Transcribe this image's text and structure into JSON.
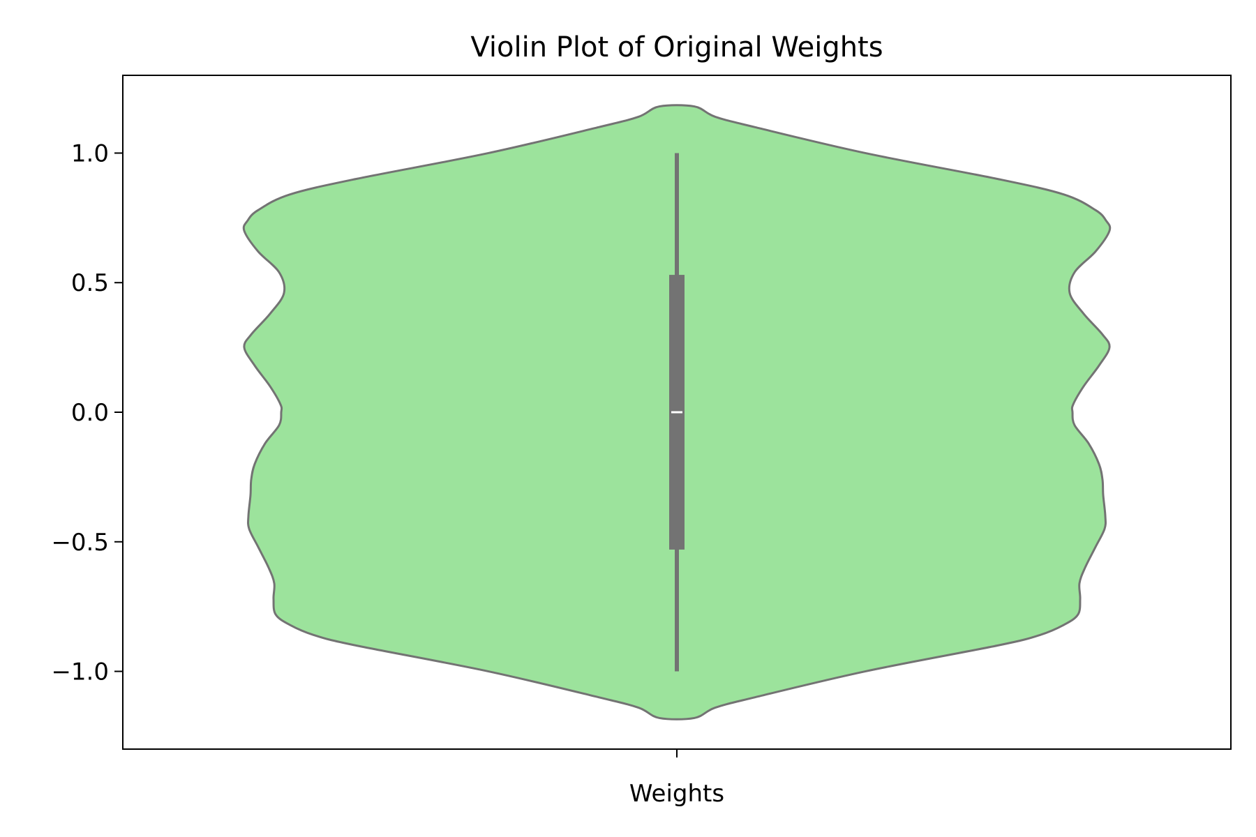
{
  "chart_data": {
    "type": "violin",
    "title": "Violin Plot of Original Weights",
    "xlabel": "",
    "ylabel": "",
    "categories": [
      "Weights"
    ],
    "ylim": [
      -1.3,
      1.3
    ],
    "yticks": [
      1.0,
      0.5,
      0.0,
      -0.5,
      -1.0
    ],
    "ytick_labels": [
      "1.0",
      "0.5",
      "0.0",
      "−0.5",
      "−1.0"
    ],
    "grid": false,
    "legend": "none",
    "colors": {
      "fill": "#9ce39c",
      "edge": "#737373",
      "box": "#737373",
      "median": "#ffffff"
    },
    "density_profile": {
      "y": [
        1.18,
        1.14,
        1.1,
        1.0,
        0.9,
        0.84,
        0.78,
        0.74,
        0.7,
        0.62,
        0.54,
        0.46,
        0.38,
        0.3,
        0.25,
        0.18,
        0.1,
        0.03,
        0.0,
        -0.05,
        -0.12,
        -0.2,
        -0.26,
        -0.32,
        -0.4,
        -0.45,
        -0.52,
        -0.6,
        -0.66,
        -0.72,
        -0.78,
        -0.82,
        -0.86,
        -0.9,
        -1.0,
        -1.1,
        -1.14,
        -1.18
      ],
      "half_width": [
        0.025,
        0.055,
        0.112,
        0.27,
        0.46,
        0.555,
        0.6,
        0.615,
        0.62,
        0.6,
        0.57,
        0.563,
        0.583,
        0.61,
        0.62,
        0.605,
        0.583,
        0.568,
        0.567,
        0.57,
        0.59,
        0.605,
        0.61,
        0.611,
        0.614,
        0.613,
        0.6,
        0.585,
        0.577,
        0.578,
        0.575,
        0.555,
        0.52,
        0.46,
        0.27,
        0.112,
        0.055,
        0.025
      ]
    },
    "box": {
      "min": -1.0,
      "q1": -0.53,
      "median": 0.0,
      "q3": 0.53,
      "max": 1.0
    }
  }
}
